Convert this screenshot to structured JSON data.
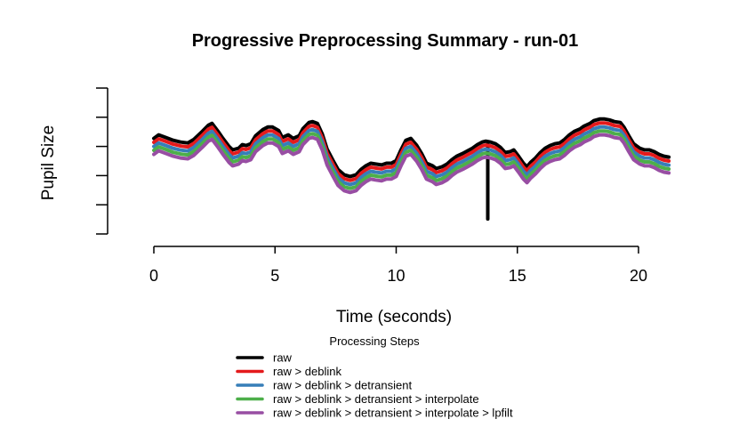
{
  "page": {
    "background": "#ffffff"
  },
  "chart_data": {
    "type": "line",
    "title": "Progressive Preprocessing Summary - run-01",
    "xlabel": "Time (seconds)",
    "ylabel": "Pupil Size",
    "x_ticks": [
      0,
      5,
      10,
      15,
      20
    ],
    "x_range": [
      0,
      21.25
    ],
    "y_axis": {
      "labeled": false,
      "tick_count": 6,
      "units": "arbitrary (no tick labels shown)"
    },
    "grid": false,
    "legend": {
      "title": "Processing Steps",
      "position": "bottom-center"
    },
    "series": [
      {
        "key": "raw",
        "label": "raw",
        "color": "#000000",
        "offset_v": 0
      },
      {
        "key": "deblink",
        "label": "raw > deblink",
        "color": "#E41A1C",
        "offset_v": -0.027
      },
      {
        "key": "detransient",
        "label": "raw > deblink > detransient",
        "color": "#377EB8",
        "offset_v": -0.055
      },
      {
        "key": "interpolate",
        "label": "raw > deblink > detransient > interpolate",
        "color": "#4DAF4A",
        "offset_v": -0.082
      },
      {
        "key": "lpfilt",
        "label": "raw > deblink > detransient > interpolate > lpfilt",
        "color": "#984EA3",
        "offset_v": -0.109
      }
    ],
    "t": [
      0,
      0.2,
      0.5,
      0.8,
      1.1,
      1.4,
      1.65,
      2.0,
      2.25,
      2.4,
      2.65,
      2.85,
      3.1,
      3.25,
      3.5,
      3.65,
      3.8,
      4.0,
      4.2,
      4.5,
      4.7,
      4.9,
      5.15,
      5.3,
      5.55,
      5.75,
      6.0,
      6.15,
      6.4,
      6.55,
      6.75,
      6.95,
      7.15,
      7.4,
      7.6,
      7.85,
      8.1,
      8.35,
      8.55,
      8.75,
      8.95,
      9.15,
      9.4,
      9.6,
      9.8,
      10.0,
      10.2,
      10.4,
      10.6,
      10.85,
      11.05,
      11.25,
      11.5,
      11.65,
      11.9,
      12.1,
      12.3,
      12.5,
      12.75,
      12.95,
      13.15,
      13.35,
      13.55,
      13.7,
      13.9,
      14.1,
      14.3,
      14.5,
      14.7,
      14.85,
      15.05,
      15.25,
      15.4,
      15.55,
      15.75,
      15.95,
      16.15,
      16.35,
      16.55,
      16.75,
      16.95,
      17.15,
      17.35,
      17.6,
      17.75,
      18.0,
      18.15,
      18.4,
      18.6,
      18.8,
      19.0,
      19.25,
      19.4,
      19.6,
      19.8,
      20.05,
      20.25,
      20.45,
      20.65,
      20.85,
      21.05,
      21.25
    ],
    "base_values": [
      0.655,
      0.679,
      0.661,
      0.642,
      0.63,
      0.624,
      0.648,
      0.703,
      0.745,
      0.758,
      0.703,
      0.655,
      0.6,
      0.576,
      0.588,
      0.612,
      0.606,
      0.618,
      0.673,
      0.715,
      0.733,
      0.733,
      0.709,
      0.661,
      0.679,
      0.655,
      0.673,
      0.721,
      0.764,
      0.77,
      0.758,
      0.685,
      0.582,
      0.503,
      0.442,
      0.406,
      0.394,
      0.406,
      0.442,
      0.467,
      0.485,
      0.479,
      0.473,
      0.485,
      0.485,
      0.503,
      0.576,
      0.642,
      0.655,
      0.606,
      0.552,
      0.485,
      0.467,
      0.448,
      0.461,
      0.479,
      0.509,
      0.533,
      0.552,
      0.57,
      0.588,
      0.612,
      0.63,
      0.636,
      0.63,
      0.618,
      0.594,
      0.558,
      0.564,
      0.576,
      0.533,
      0.485,
      0.461,
      0.491,
      0.521,
      0.558,
      0.588,
      0.606,
      0.618,
      0.624,
      0.648,
      0.679,
      0.703,
      0.721,
      0.739,
      0.758,
      0.776,
      0.788,
      0.788,
      0.782,
      0.77,
      0.764,
      0.733,
      0.673,
      0.618,
      0.588,
      0.576,
      0.576,
      0.564,
      0.545,
      0.533,
      0.527
    ],
    "spike": {
      "series": "raw",
      "t": 13.78,
      "value": 0.103
    }
  }
}
